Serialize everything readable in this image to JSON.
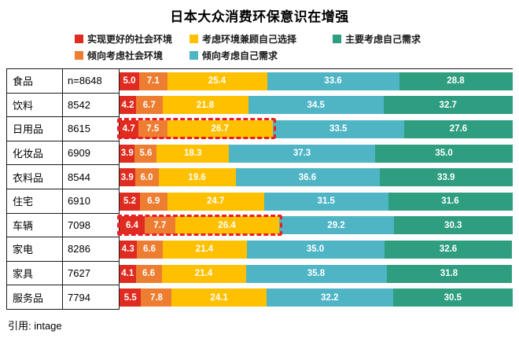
{
  "title": "日本大众消费环保意识在增强",
  "citation": "引用: intage",
  "chart_data": {
    "type": "bar",
    "stacked": true,
    "orientation": "horizontal",
    "xlim": [
      0,
      100
    ],
    "title": "日本大众消费环保意识在增强",
    "categories": [
      "食品",
      "饮料",
      "日用品",
      "化妆品",
      "衣料品",
      "住宅",
      "车辆",
      "家电",
      "家具",
      "服务品"
    ],
    "sample_sizes": [
      "n=8648",
      "8542",
      "8615",
      "6909",
      "8544",
      "6910",
      "7098",
      "8286",
      "7627",
      "7794"
    ],
    "series": [
      {
        "name": "实现更好的社会环境",
        "color": "#e02b20",
        "values": [
          5.0,
          4.2,
          4.7,
          3.9,
          3.9,
          5.2,
          6.4,
          4.3,
          4.1,
          5.5
        ]
      },
      {
        "name": "倾向考虑社会环境",
        "color": "#ed7d31",
        "values": [
          7.1,
          6.7,
          7.5,
          5.6,
          6.0,
          6.9,
          7.7,
          6.6,
          6.6,
          7.8
        ]
      },
      {
        "name": "考虑环境兼顾自己选择",
        "color": "#ffc000",
        "values": [
          25.4,
          21.8,
          26.7,
          18.3,
          19.6,
          24.7,
          26.4,
          21.4,
          21.4,
          24.1
        ]
      },
      {
        "name": "倾向考虑自己需求",
        "color": "#4fb5c5",
        "values": [
          33.6,
          34.5,
          33.5,
          37.3,
          36.6,
          31.5,
          29.2,
          35.0,
          35.8,
          32.2
        ]
      },
      {
        "name": "主要考虑自己需求",
        "color": "#2f9e80",
        "values": [
          28.8,
          32.7,
          27.6,
          35.0,
          33.9,
          31.6,
          30.3,
          32.6,
          31.8,
          30.5
        ]
      }
    ],
    "legend_rows": [
      [
        0,
        2,
        4
      ],
      [
        1,
        3
      ]
    ],
    "legend_position": "top",
    "grid": false,
    "highlights": [
      {
        "row": 2,
        "through_series": 2
      },
      {
        "row": 6,
        "through_series": 2
      }
    ],
    "highlight_color": "#ec1c24"
  }
}
